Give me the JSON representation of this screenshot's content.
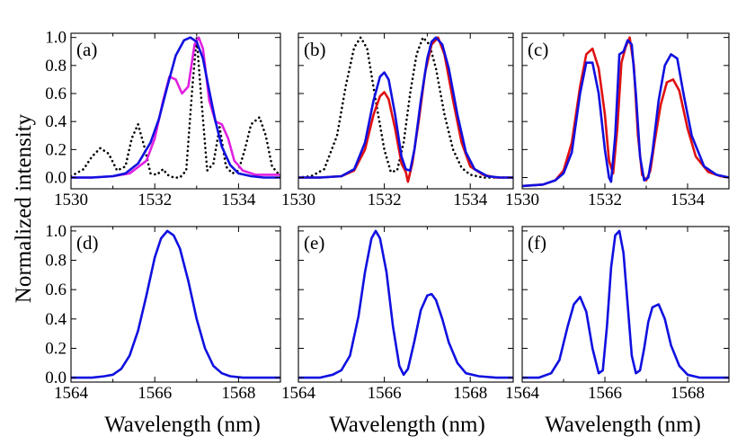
{
  "colors": {
    "blue": "#1010e0",
    "red": "#e01010",
    "magenta": "#e020e0",
    "black": "#000000"
  },
  "ylabel": "Normalized intensity",
  "xlabel": "Wavelength (nm)",
  "chart_data": [
    {
      "id": "a",
      "label": "(a)",
      "type": "line",
      "xlim": [
        1530,
        1535
      ],
      "ylim": [
        -0.08,
        1.03
      ],
      "xticks": [
        1530,
        1532,
        1534
      ],
      "yticks": [
        0.0,
        0.2,
        0.4,
        0.6,
        0.8,
        1.0
      ],
      "ytick_labels": [
        "0.0",
        "0.2",
        "0.4",
        "0.6",
        "0.8",
        "1.0"
      ],
      "series": [
        {
          "color": "black",
          "dash": "dotted",
          "x": [
            1530.0,
            1530.3,
            1530.5,
            1530.7,
            1530.9,
            1531.1,
            1531.3,
            1531.45,
            1531.6,
            1531.75,
            1531.9,
            1532.05,
            1532.2,
            1532.3,
            1532.45,
            1532.6,
            1532.75,
            1532.9,
            1533.0,
            1533.1,
            1533.25,
            1533.4,
            1533.55,
            1533.7,
            1533.85,
            1534.0,
            1534.15,
            1534.3,
            1534.5,
            1534.65,
            1534.8,
            1535.0
          ],
          "y": [
            0.01,
            0.06,
            0.15,
            0.21,
            0.17,
            0.05,
            0.08,
            0.28,
            0.38,
            0.22,
            0.03,
            0.02,
            0.06,
            0.02,
            0.0,
            0.0,
            0.05,
            0.65,
            1.0,
            0.6,
            0.05,
            0.1,
            0.36,
            0.08,
            0.03,
            0.05,
            0.2,
            0.38,
            0.43,
            0.3,
            0.08,
            0.01
          ]
        },
        {
          "color": "magenta",
          "dash": "solid",
          "x": [
            1530.0,
            1530.5,
            1531.0,
            1531.4,
            1531.8,
            1532.0,
            1532.2,
            1532.35,
            1532.5,
            1532.65,
            1532.8,
            1532.95,
            1533.05,
            1533.15,
            1533.3,
            1533.45,
            1533.6,
            1533.75,
            1533.9,
            1534.1,
            1534.4,
            1534.7,
            1535.0
          ],
          "y": [
            0.0,
            0.0,
            0.01,
            0.03,
            0.12,
            0.28,
            0.55,
            0.72,
            0.7,
            0.6,
            0.65,
            0.95,
            1.0,
            0.92,
            0.55,
            0.4,
            0.38,
            0.28,
            0.12,
            0.05,
            0.02,
            0.02,
            0.02
          ]
        },
        {
          "color": "blue",
          "dash": "solid",
          "x": [
            1530.0,
            1530.5,
            1531.0,
            1531.3,
            1531.6,
            1531.9,
            1532.1,
            1532.3,
            1532.5,
            1532.7,
            1532.85,
            1533.0,
            1533.15,
            1533.3,
            1533.45,
            1533.6,
            1533.8,
            1534.0,
            1534.3,
            1534.6,
            1535.0
          ],
          "y": [
            0.0,
            0.0,
            0.01,
            0.03,
            0.1,
            0.25,
            0.42,
            0.65,
            0.87,
            0.98,
            1.0,
            0.97,
            0.85,
            0.62,
            0.4,
            0.22,
            0.09,
            0.03,
            0.01,
            0.0,
            0.0
          ]
        }
      ]
    },
    {
      "id": "b",
      "label": "(b)",
      "type": "line",
      "xlim": [
        1530,
        1535
      ],
      "ylim": [
        -0.08,
        1.03
      ],
      "xticks": [
        1530,
        1532,
        1534
      ],
      "yticks": [
        0.0,
        0.2,
        0.4,
        0.6,
        0.8,
        1.0
      ],
      "series": [
        {
          "color": "black",
          "dash": "dotted",
          "x": [
            1530.0,
            1530.3,
            1530.6,
            1530.9,
            1531.1,
            1531.3,
            1531.45,
            1531.6,
            1531.8,
            1532.0,
            1532.15,
            1532.3,
            1532.45,
            1532.6,
            1532.75,
            1532.9,
            1533.05,
            1533.2,
            1533.4,
            1533.6,
            1533.8,
            1534.0,
            1534.3,
            1534.6,
            1535.0
          ],
          "y": [
            0.0,
            0.01,
            0.06,
            0.3,
            0.65,
            0.93,
            1.0,
            0.92,
            0.55,
            0.2,
            0.04,
            0.05,
            0.25,
            0.6,
            0.88,
            1.0,
            0.95,
            0.78,
            0.45,
            0.2,
            0.07,
            0.02,
            0.0,
            0.0,
            0.0
          ]
        },
        {
          "color": "red",
          "dash": "solid",
          "x": [
            1530.0,
            1530.5,
            1531.0,
            1531.3,
            1531.55,
            1531.75,
            1531.9,
            1532.0,
            1532.1,
            1532.25,
            1532.4,
            1532.5,
            1532.55,
            1532.65,
            1532.8,
            1532.95,
            1533.1,
            1533.25,
            1533.4,
            1533.6,
            1533.8,
            1534.0,
            1534.3,
            1534.6,
            1535.0
          ],
          "y": [
            0.0,
            0.0,
            0.01,
            0.05,
            0.2,
            0.45,
            0.58,
            0.61,
            0.56,
            0.35,
            0.1,
            0.04,
            -0.03,
            0.1,
            0.4,
            0.75,
            0.95,
            1.0,
            0.88,
            0.55,
            0.25,
            0.08,
            0.02,
            0.0,
            0.0
          ]
        },
        {
          "color": "blue",
          "dash": "solid",
          "x": [
            1530.0,
            1530.5,
            1531.0,
            1531.3,
            1531.55,
            1531.75,
            1531.9,
            1532.0,
            1532.1,
            1532.25,
            1532.4,
            1532.5,
            1532.6,
            1532.7,
            1532.85,
            1533.0,
            1533.1,
            1533.2,
            1533.35,
            1533.5,
            1533.7,
            1533.9,
            1534.1,
            1534.4,
            1534.7,
            1535.0
          ],
          "y": [
            0.0,
            0.0,
            0.01,
            0.06,
            0.25,
            0.55,
            0.72,
            0.75,
            0.7,
            0.45,
            0.15,
            0.06,
            0.05,
            0.2,
            0.55,
            0.85,
            0.97,
            1.0,
            0.95,
            0.78,
            0.45,
            0.18,
            0.06,
            0.01,
            0.0,
            0.0
          ]
        }
      ]
    },
    {
      "id": "c",
      "label": "(c)",
      "type": "line",
      "xlim": [
        1530,
        1535
      ],
      "ylim": [
        -0.08,
        1.03
      ],
      "xticks": [
        1530,
        1532,
        1534
      ],
      "yticks": [
        0.0,
        0.2,
        0.4,
        0.6,
        0.8,
        1.0
      ],
      "series": [
        {
          "color": "red",
          "dash": "solid",
          "x": [
            1530.0,
            1530.5,
            1530.8,
            1531.0,
            1531.2,
            1531.4,
            1531.55,
            1531.7,
            1531.85,
            1532.0,
            1532.1,
            1532.2,
            1532.3,
            1532.4,
            1532.5,
            1532.6,
            1532.7,
            1532.8,
            1532.9,
            1533.0,
            1533.1,
            1533.2,
            1533.35,
            1533.5,
            1533.65,
            1533.8,
            1534.0,
            1534.2,
            1534.5,
            1534.8,
            1535.0
          ],
          "y": [
            -0.06,
            -0.05,
            -0.02,
            0.05,
            0.25,
            0.65,
            0.88,
            0.92,
            0.78,
            0.45,
            0.12,
            0.03,
            0.35,
            0.82,
            0.93,
            1.0,
            0.8,
            0.3,
            0.02,
            -0.02,
            0.05,
            0.25,
            0.52,
            0.68,
            0.7,
            0.62,
            0.35,
            0.15,
            0.04,
            0.01,
            0.0
          ]
        },
        {
          "color": "blue",
          "dash": "solid",
          "x": [
            1530.0,
            1530.5,
            1530.8,
            1531.0,
            1531.2,
            1531.4,
            1531.55,
            1531.7,
            1531.85,
            1532.0,
            1532.1,
            1532.15,
            1532.25,
            1532.35,
            1532.45,
            1532.55,
            1532.65,
            1532.75,
            1532.85,
            1532.95,
            1533.05,
            1533.15,
            1533.3,
            1533.45,
            1533.6,
            1533.75,
            1533.9,
            1534.1,
            1534.4,
            1534.7,
            1535.0
          ],
          "y": [
            -0.06,
            -0.05,
            -0.02,
            0.03,
            0.18,
            0.6,
            0.82,
            0.82,
            0.6,
            0.2,
            0.0,
            -0.03,
            0.3,
            0.88,
            0.9,
            0.98,
            0.95,
            0.6,
            0.15,
            -0.02,
            0.0,
            0.18,
            0.55,
            0.8,
            0.88,
            0.85,
            0.6,
            0.3,
            0.08,
            0.02,
            0.0
          ]
        }
      ]
    },
    {
      "id": "d",
      "label": "(d)",
      "type": "line",
      "xlim": [
        1564,
        1569
      ],
      "ylim": [
        -0.03,
        1.03
      ],
      "xticks": [
        1564,
        1566,
        1568
      ],
      "yticks": [
        0.0,
        0.2,
        0.4,
        0.6,
        0.8,
        1.0
      ],
      "ytick_labels": [
        "0.0",
        "0.2",
        "0.4",
        "0.6",
        "0.8",
        "1.0"
      ],
      "series": [
        {
          "color": "blue",
          "dash": "solid",
          "x": [
            1564.0,
            1564.5,
            1564.8,
            1565.0,
            1565.2,
            1565.4,
            1565.6,
            1565.8,
            1566.0,
            1566.15,
            1566.3,
            1566.45,
            1566.6,
            1566.8,
            1567.0,
            1567.2,
            1567.4,
            1567.6,
            1567.8,
            1568.1,
            1568.5,
            1569.0
          ],
          "y": [
            0.0,
            0.0,
            0.01,
            0.02,
            0.06,
            0.15,
            0.32,
            0.56,
            0.82,
            0.95,
            1.0,
            0.97,
            0.88,
            0.66,
            0.4,
            0.2,
            0.08,
            0.03,
            0.01,
            0.0,
            0.0,
            0.0
          ]
        }
      ]
    },
    {
      "id": "e",
      "label": "(e)",
      "type": "line",
      "xlim": [
        1564,
        1569
      ],
      "ylim": [
        -0.03,
        1.03
      ],
      "xticks": [
        1564,
        1566,
        1568
      ],
      "yticks": [
        0.0,
        0.2,
        0.4,
        0.6,
        0.8,
        1.0
      ],
      "series": [
        {
          "color": "blue",
          "dash": "solid",
          "x": [
            1564.0,
            1564.5,
            1564.8,
            1565.0,
            1565.2,
            1565.4,
            1565.55,
            1565.7,
            1565.8,
            1565.9,
            1566.05,
            1566.2,
            1566.35,
            1566.45,
            1566.55,
            1566.7,
            1566.85,
            1567.0,
            1567.1,
            1567.2,
            1567.35,
            1567.5,
            1567.7,
            1567.9,
            1568.2,
            1568.6,
            1569.0
          ],
          "y": [
            0.0,
            0.0,
            0.02,
            0.05,
            0.15,
            0.42,
            0.72,
            0.95,
            1.0,
            0.95,
            0.72,
            0.35,
            0.08,
            0.02,
            0.06,
            0.25,
            0.46,
            0.56,
            0.57,
            0.53,
            0.4,
            0.24,
            0.1,
            0.03,
            0.01,
            0.0,
            0.0
          ]
        }
      ]
    },
    {
      "id": "f",
      "label": "(f)",
      "type": "line",
      "xlim": [
        1564,
        1569
      ],
      "ylim": [
        -0.03,
        1.03
      ],
      "xticks": [
        1564,
        1566,
        1568
      ],
      "yticks": [
        0.0,
        0.2,
        0.4,
        0.6,
        0.8,
        1.0
      ],
      "series": [
        {
          "color": "blue",
          "dash": "solid",
          "x": [
            1564.0,
            1564.4,
            1564.7,
            1564.9,
            1565.1,
            1565.25,
            1565.4,
            1565.55,
            1565.7,
            1565.85,
            1565.95,
            1566.05,
            1566.15,
            1566.25,
            1566.35,
            1566.45,
            1566.55,
            1566.65,
            1566.75,
            1566.85,
            1566.95,
            1567.05,
            1567.15,
            1567.3,
            1567.45,
            1567.6,
            1567.8,
            1568.0,
            1568.3,
            1568.7,
            1569.0
          ],
          "y": [
            0.0,
            0.0,
            0.03,
            0.12,
            0.35,
            0.5,
            0.55,
            0.45,
            0.2,
            0.03,
            0.05,
            0.35,
            0.75,
            0.97,
            1.0,
            0.85,
            0.5,
            0.15,
            0.03,
            0.05,
            0.2,
            0.38,
            0.48,
            0.5,
            0.4,
            0.22,
            0.08,
            0.02,
            0.0,
            0.0,
            0.0
          ]
        }
      ]
    }
  ]
}
